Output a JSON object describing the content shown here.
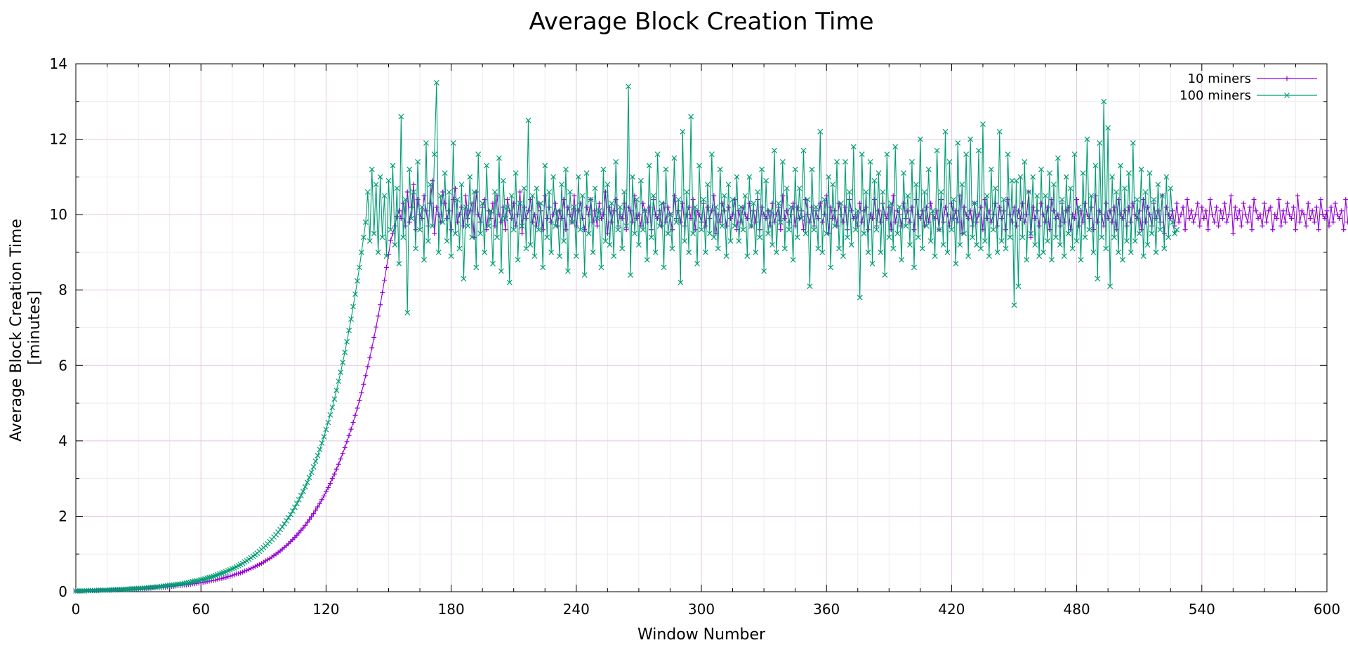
{
  "chart_data": {
    "type": "line",
    "title": "Average Block Creation Time",
    "xlabel": "Window Number",
    "ylabel_lines": [
      "Average Block Creation Time",
      "[minutes]"
    ],
    "xlim": [
      0,
      600
    ],
    "ylim": [
      0,
      14
    ],
    "xticks": [
      0,
      60,
      120,
      180,
      240,
      300,
      360,
      420,
      480,
      540,
      600
    ],
    "yticks": [
      0,
      2,
      4,
      6,
      8,
      10,
      12,
      14
    ],
    "grid": true,
    "legend_position": "top-right",
    "series": [
      {
        "name": "10 miners",
        "color": "#9400d3",
        "marker": "plus",
        "x_start": 0,
        "x_step": 1,
        "values": [
          0.02,
          0.02,
          0.02,
          0.02,
          0.02,
          0.02,
          0.03,
          0.03,
          0.03,
          0.03,
          0.03,
          0.03,
          0.04,
          0.04,
          0.04,
          0.04,
          0.04,
          0.04,
          0.05,
          0.05,
          0.05,
          0.05,
          0.05,
          0.06,
          0.06,
          0.06,
          0.06,
          0.07,
          0.07,
          0.07,
          0.07,
          0.08,
          0.08,
          0.08,
          0.08,
          0.09,
          0.09,
          0.1,
          0.1,
          0.11,
          0.11,
          0.11,
          0.12,
          0.12,
          0.13,
          0.13,
          0.14,
          0.14,
          0.15,
          0.16,
          0.16,
          0.17,
          0.18,
          0.18,
          0.19,
          0.2,
          0.21,
          0.21,
          0.22,
          0.23,
          0.24,
          0.25,
          0.26,
          0.27,
          0.28,
          0.29,
          0.3,
          0.31,
          0.33,
          0.34,
          0.35,
          0.37,
          0.38,
          0.4,
          0.41,
          0.43,
          0.45,
          0.47,
          0.48,
          0.5,
          0.52,
          0.55,
          0.57,
          0.59,
          0.62,
          0.64,
          0.67,
          0.7,
          0.72,
          0.75,
          0.78,
          0.82,
          0.85,
          0.88,
          0.92,
          0.96,
          1.0,
          1.04,
          1.08,
          1.13,
          1.18,
          1.22,
          1.27,
          1.33,
          1.38,
          1.44,
          1.5,
          1.56,
          1.63,
          1.69,
          1.76,
          1.84,
          1.91,
          1.99,
          2.07,
          2.16,
          2.25,
          2.34,
          2.44,
          2.54,
          2.65,
          2.76,
          2.87,
          3.0,
          3.12,
          3.25,
          3.38,
          3.52,
          3.67,
          3.82,
          3.98,
          4.14,
          4.31,
          4.49,
          4.68,
          4.87,
          5.07,
          5.28,
          5.5,
          5.73,
          5.97,
          6.21,
          6.47,
          6.74,
          7.02,
          7.31,
          7.61,
          7.93,
          8.26,
          8.6,
          8.95,
          9.32,
          9.5,
          9.7,
          9.95,
          10.1,
          9.9,
          10.3,
          9.7,
          10.6,
          9.8,
          10.2,
          10.8,
          9.6,
          10.4,
          10.0,
          9.9,
          10.5,
          10.1,
          9.7,
          10.3,
          10.9,
          9.5,
          10.2,
          10.0,
          9.8,
          10.6,
          10.3,
          9.9,
          10.1,
          9.6,
          10.4,
          10.7,
          9.8,
          10.0,
          10.2,
          9.7,
          10.5,
          9.9,
          10.1,
          10.3,
          9.4,
          10.6,
          10.0,
          9.8,
          10.2,
          10.4,
          9.6,
          10.1,
          9.9,
          10.3,
          9.7,
          10.5,
          10.0,
          9.8,
          10.2,
          9.6,
          10.4,
          10.1,
          9.9,
          10.3,
          9.7,
          10.0,
          10.6,
          9.5,
          10.2,
          9.9,
          10.1,
          10.4,
          9.8,
          10.0,
          9.7,
          10.3,
          10.1,
          9.6,
          10.5,
          9.9,
          10.2,
          9.8,
          10.0,
          10.3,
          9.7,
          10.1,
          9.9,
          10.4,
          9.6,
          10.2,
          10.0,
          9.8,
          10.5,
          9.7,
          10.1,
          10.3,
          9.9,
          9.6,
          10.2,
          10.0,
          10.4,
          9.8,
          10.1,
          9.7,
          10.3,
          9.9,
          10.0,
          10.6,
          9.5,
          10.2,
          9.8,
          10.1,
          10.4,
          9.7,
          10.0,
          9.9,
          10.3,
          9.6,
          10.2,
          10.1,
          9.8,
          10.5,
          9.9,
          10.0,
          9.7,
          10.3,
          10.1,
          9.8,
          10.2,
          9.6,
          10.4,
          10.0,
          9.9,
          10.1,
          9.7,
          10.3,
          9.8,
          10.2,
          10.0,
          9.6,
          10.5,
          9.9,
          10.1,
          9.8,
          10.3,
          9.7,
          10.0,
          10.2,
          9.9,
          10.4,
          9.6,
          10.1,
          10.0,
          9.8,
          10.3,
          9.7,
          10.2,
          9.9,
          10.1,
          10.5,
          9.5,
          10.0,
          9.8,
          10.3,
          10.1,
          9.7,
          10.2,
          9.9,
          10.0,
          10.4,
          9.6,
          10.1,
          9.8,
          10.2,
          10.0,
          9.9,
          10.3,
          9.7,
          10.1,
          9.8,
          10.4,
          9.6,
          10.2,
          10.0,
          9.9,
          10.1,
          9.7,
          10.3,
          9.8,
          10.0,
          10.2,
          9.6,
          10.5,
          9.9,
          10.1,
          9.8,
          10.0,
          10.3,
          9.7,
          10.2,
          9.9,
          10.1,
          9.6,
          10.4,
          10.0,
          9.8,
          10.2,
          9.7,
          10.1,
          9.9,
          10.3,
          9.8,
          10.0,
          10.5,
          9.5,
          10.2,
          9.9,
          10.1,
          9.7,
          10.3,
          10.0,
          9.8,
          10.2,
          9.6,
          10.4,
          10.1,
          9.9,
          10.0,
          9.7,
          10.3,
          9.8,
          10.1,
          10.2,
          9.6,
          10.0,
          9.9,
          10.4,
          9.7,
          10.1,
          9.8,
          10.3,
          10.0,
          9.9,
          10.2,
          9.6,
          10.5,
          9.8,
          10.1,
          10.0,
          9.7,
          10.3,
          9.9,
          10.1,
          9.8,
          10.2,
          9.6,
          10.4,
          10.0,
          9.9,
          10.1,
          9.7,
          10.2,
          9.8,
          10.3,
          10.0,
          9.9,
          10.1,
          9.6,
          10.4,
          9.8,
          10.2,
          10.0,
          9.7,
          10.3,
          9.9,
          10.1,
          9.8,
          10.5,
          9.5,
          10.2,
          10.0,
          9.9,
          10.1,
          9.7,
          10.3,
          9.8,
          10.0,
          10.2,
          9.6,
          10.4,
          9.9,
          10.1,
          9.8,
          10.0,
          10.3,
          9.7,
          10.2,
          9.9,
          10.1,
          9.6,
          10.4,
          10.0,
          9.8,
          10.2,
          9.7,
          10.1,
          9.9,
          10.3,
          9.8,
          10.0,
          10.6,
          9.4,
          10.2,
          9.9,
          10.1,
          9.7,
          10.3,
          10.0,
          9.8,
          10.2,
          9.6,
          10.4,
          10.1,
          9.9,
          10.0,
          9.7,
          10.3,
          9.8,
          10.1,
          10.2,
          9.6,
          10.0,
          9.9,
          10.4,
          9.7,
          10.1,
          9.8,
          10.3,
          10.0,
          9.9,
          10.2,
          9.6,
          10.5,
          9.8,
          10.1,
          10.0,
          9.7,
          10.3,
          9.9,
          10.1,
          9.8,
          10.2,
          9.6,
          10.4,
          10.0,
          9.9,
          10.1,
          9.7,
          10.2,
          9.8,
          10.3,
          10.0,
          9.9,
          10.1,
          9.6,
          10.4,
          9.8,
          10.2,
          10.0,
          9.7,
          10.3,
          9.9,
          10.1,
          9.8,
          10.5,
          9.5,
          10.2,
          10.0,
          9.9,
          10.1,
          9.7,
          10.3,
          9.8,
          10.0,
          10.2,
          9.6,
          10.4,
          9.9,
          10.1,
          9.8,
          10.0,
          10.3,
          9.7,
          10.2,
          9.9,
          10.1,
          9.6,
          10.4,
          10.0,
          9.8,
          10.2,
          9.7,
          10.1,
          9.9,
          10.3,
          9.8,
          10.0,
          10.5,
          9.5,
          10.2,
          9.9,
          10.1,
          9.7,
          10.3,
          10.0,
          9.8,
          10.2,
          9.6,
          10.4,
          10.1,
          9.9,
          10.0,
          9.7,
          10.3,
          9.8,
          10.1,
          10.2,
          9.6,
          10.0,
          9.9,
          10.4,
          9.7,
          10.1,
          9.8,
          10.3,
          10.0,
          9.9,
          10.2,
          9.6,
          10.5,
          9.8,
          10.1,
          10.0,
          9.7,
          10.3,
          9.9,
          10.1,
          9.8,
          10.2,
          9.6,
          10.4,
          10.0,
          9.9,
          10.1,
          9.7,
          10.2,
          9.8,
          10.3,
          10.0,
          9.9,
          10.1,
          9.6,
          10.4,
          9.8,
          10.2,
          10.0
        ]
      },
      {
        "name": "100 miners",
        "color": "#009e73",
        "marker": "cross",
        "x_start": 0,
        "x_step": 1,
        "values": [
          0.02,
          0.02,
          0.02,
          0.02,
          0.02,
          0.03,
          0.03,
          0.03,
          0.03,
          0.03,
          0.03,
          0.04,
          0.04,
          0.04,
          0.04,
          0.04,
          0.05,
          0.05,
          0.05,
          0.05,
          0.06,
          0.06,
          0.06,
          0.06,
          0.07,
          0.07,
          0.07,
          0.08,
          0.08,
          0.08,
          0.09,
          0.09,
          0.09,
          0.1,
          0.1,
          0.11,
          0.11,
          0.12,
          0.12,
          0.13,
          0.13,
          0.14,
          0.15,
          0.15,
          0.16,
          0.17,
          0.17,
          0.18,
          0.19,
          0.2,
          0.2,
          0.21,
          0.22,
          0.23,
          0.24,
          0.25,
          0.27,
          0.28,
          0.29,
          0.3,
          0.32,
          0.33,
          0.34,
          0.36,
          0.38,
          0.39,
          0.41,
          0.43,
          0.45,
          0.47,
          0.49,
          0.51,
          0.53,
          0.56,
          0.58,
          0.61,
          0.63,
          0.66,
          0.69,
          0.72,
          0.75,
          0.79,
          0.82,
          0.86,
          0.9,
          0.94,
          0.98,
          1.02,
          1.07,
          1.12,
          1.17,
          1.22,
          1.27,
          1.33,
          1.39,
          1.45,
          1.51,
          1.58,
          1.65,
          1.72,
          1.8,
          1.88,
          1.96,
          2.05,
          2.14,
          2.24,
          2.34,
          2.44,
          2.55,
          2.66,
          2.78,
          2.9,
          3.03,
          3.17,
          3.31,
          3.46,
          3.61,
          3.77,
          3.94,
          4.11,
          4.3,
          4.49,
          4.69,
          4.89,
          5.11,
          5.34,
          5.58,
          5.82,
          6.08,
          6.35,
          6.63,
          6.93,
          7.23,
          7.56,
          7.89,
          8.24,
          8.6,
          9.0,
          9.4,
          9.8,
          10.6,
          9.3,
          11.2,
          9.5,
          10.8,
          9.0,
          11.0,
          9.4,
          10.5,
          8.9,
          10.9,
          9.6,
          11.3,
          9.2,
          10.7,
          8.7,
          12.6,
          9.4,
          10.4,
          7.4,
          11.2,
          9.9,
          10.6,
          9.1,
          11.4,
          9.6,
          10.2,
          8.8,
          11.9,
          9.3,
          10.8,
          9.7,
          11.6,
          13.5,
          9.0,
          10.5,
          9.8,
          11.1,
          9.3,
          10.6,
          8.9,
          11.9,
          9.5,
          10.4,
          9.1,
          10.8,
          8.3,
          10.2,
          9.7,
          11.0,
          9.4,
          10.6,
          8.6,
          11.6,
          9.5,
          10.3,
          9.0,
          11.3,
          9.7,
          10.1,
          8.7,
          10.6,
          9.4,
          11.5,
          8.5,
          10.9,
          9.9,
          10.2,
          8.2,
          10.5,
          9.6,
          11.1,
          8.8,
          10.3,
          9.7,
          10.7,
          9.1,
          12.5,
          9.2,
          10.5,
          8.9,
          10.7,
          9.6,
          10.3,
          8.6,
          11.3,
          9.4,
          10.6,
          9.0,
          11.0,
          9.7,
          10.1,
          8.9,
          10.8,
          9.3,
          11.2,
          8.5,
          10.6,
          9.8,
          10.2,
          8.9,
          11.0,
          9.6,
          10.5,
          8.4,
          11.1,
          9.5,
          10.4,
          9.0,
          10.7,
          9.9,
          10.1,
          8.6,
          11.2,
          9.3,
          10.8,
          9.2,
          10.3,
          8.9,
          11.4,
          9.6,
          10.2,
          9.1,
          10.6,
          9.7,
          13.4,
          8.4,
          11.0,
          9.5,
          10.4,
          9.2,
          10.9,
          9.6,
          10.1,
          8.8,
          11.3,
          9.4,
          10.5,
          9.0,
          11.6,
          9.7,
          10.3,
          8.6,
          11.2,
          9.5,
          10.0,
          9.1,
          11.5,
          9.8,
          10.4,
          8.2,
          12.2,
          9.3,
          10.6,
          9.0,
          12.6,
          9.5,
          10.2,
          8.7,
          11.3,
          9.6,
          10.4,
          9.0,
          10.8,
          9.5,
          11.6,
          9.4,
          10.2,
          9.1,
          11.2,
          9.7,
          10.5,
          8.9,
          10.8,
          9.3,
          10.4,
          9.7,
          11.0,
          9.3,
          10.2,
          9.6,
          10.5,
          8.9,
          11.0,
          9.7,
          10.3,
          9.0,
          10.6,
          9.4,
          11.2,
          8.5,
          10.9,
          9.5,
          10.1,
          9.2,
          11.7,
          9.0,
          10.3,
          9.8,
          11.4,
          9.1,
          10.7,
          9.6,
          10.2,
          8.8,
          11.2,
          9.4,
          10.7,
          9.9,
          11.7,
          9.5,
          10.4,
          8.1,
          11.2,
          9.6,
          10.2,
          9.1,
          12.2,
          9.0,
          10.4,
          9.5,
          11.0,
          8.6,
          10.8,
          9.7,
          11.4,
          9.1,
          10.3,
          8.9,
          11.4,
          9.4,
          10.6,
          9.2,
          11.8,
          9.6,
          10.1,
          7.8,
          11.6,
          9.5,
          10.6,
          9.0,
          11.4,
          8.7,
          10.9,
          9.6,
          11.1,
          9.0,
          10.6,
          8.4,
          11.6,
          9.4,
          10.3,
          9.1,
          11.8,
          9.5,
          10.2,
          8.8,
          11.1,
          9.7,
          10.5,
          9.2,
          11.4,
          8.6,
          10.8,
          9.4,
          12.0,
          9.1,
          10.6,
          9.7,
          11.2,
          9.3,
          10.1,
          8.9,
          11.7,
          9.6,
          10.6,
          9.2,
          12.2,
          9.0,
          11.4,
          9.6,
          10.4,
          8.7,
          11.9,
          9.2,
          10.8,
          9.5,
          11.6,
          8.9,
          12.0,
          9.4,
          10.3,
          9.2,
          11.7,
          9.1,
          12.4,
          9.3,
          10.5,
          8.9,
          11.2,
          9.6,
          10.7,
          9.0,
          12.2,
          9.3,
          10.4,
          9.1,
          11.6,
          9.4,
          10.9,
          7.6,
          10.9,
          8.1,
          11.0,
          9.4,
          11.4,
          8.8,
          10.6,
          9.5,
          11.0,
          9.2,
          10.5,
          8.9,
          11.2,
          9.0,
          10.5,
          9.3,
          11.1,
          8.8,
          10.8,
          9.4,
          11.5,
          9.2,
          10.4,
          8.9,
          11.0,
          9.5,
          10.7,
          9.1,
          11.6,
          9.3,
          10.2,
          8.8,
          11.1,
          9.4,
          12.0,
          9.6,
          10.5,
          9.0,
          11.3,
          8.3,
          11.9,
          9.4,
          13.0,
          9.1,
          12.3,
          8.1,
          11.0,
          9.4,
          10.6,
          9.0,
          11.3,
          8.8,
          10.7,
          9.3,
          11.1,
          9.0,
          11.9,
          9.3,
          10.4,
          9.5,
          11.2,
          8.9,
          10.6,
          9.2,
          11.1,
          9.5,
          10.4,
          9.0,
          10.8,
          9.6,
          10.5,
          9.1,
          11.0,
          9.4,
          10.7,
          9.8,
          9.5,
          9.6
        ]
      }
    ]
  }
}
